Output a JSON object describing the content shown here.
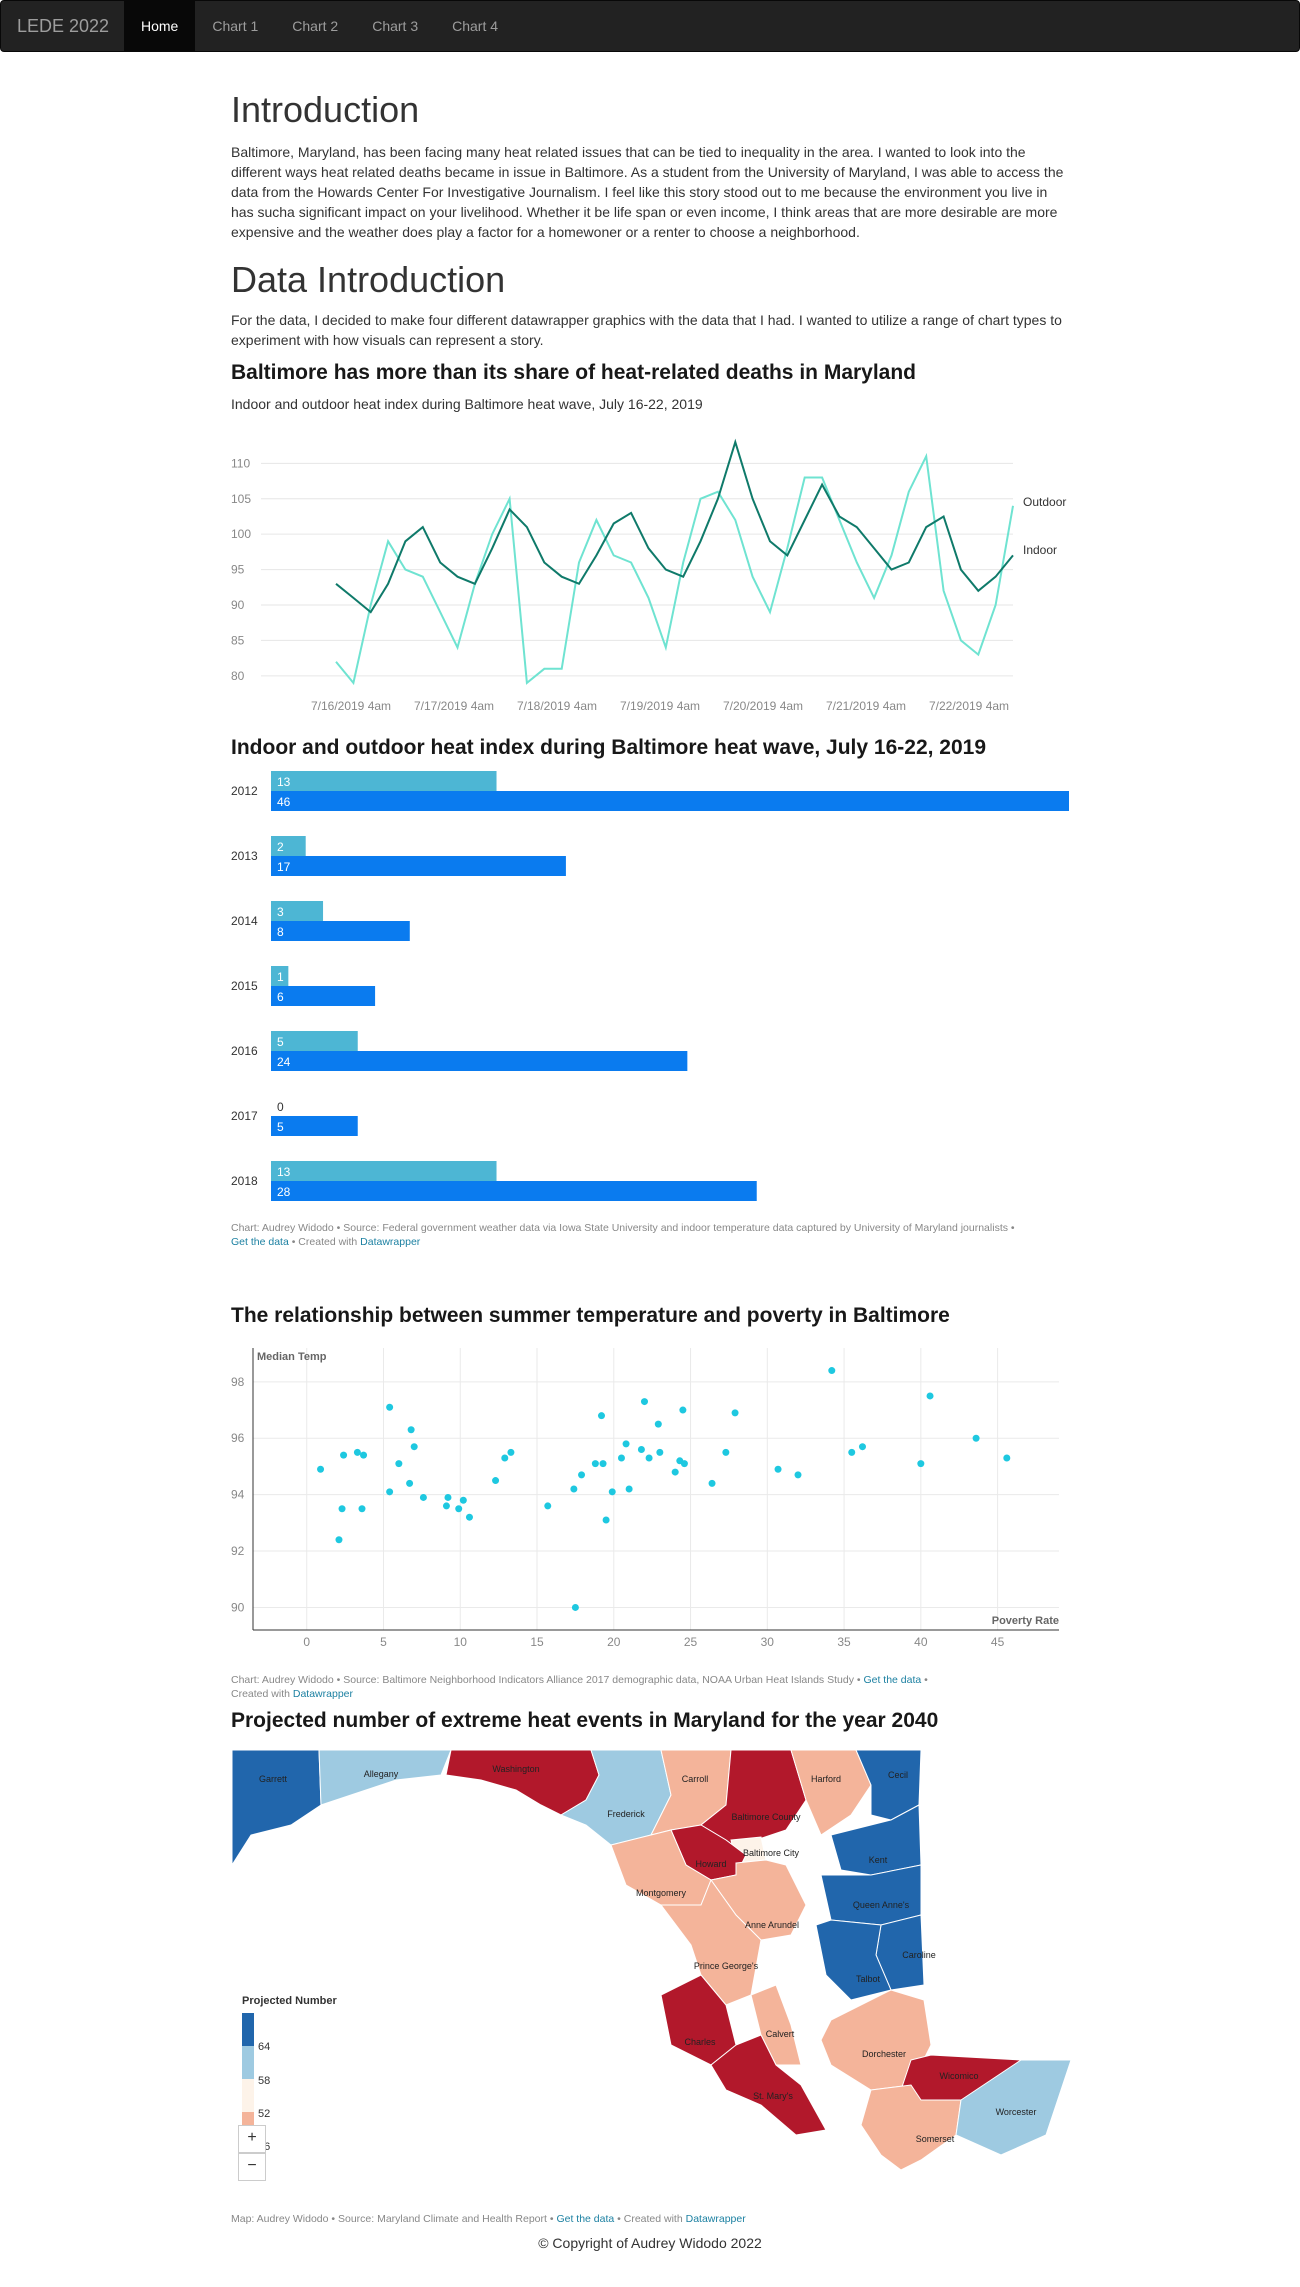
{
  "nav": {
    "brand": "LEDE 2022",
    "items": [
      "Home",
      "Chart 1",
      "Chart 2",
      "Chart 3",
      "Chart 4"
    ]
  },
  "intro": {
    "heading": "Introduction",
    "text": "Baltimore, Maryland, has been facing many heat related issues that can be tied to inequality in the area. I wanted to look into the different ways heat related deaths became in issue in Baltimore. As a student from the University of Maryland, I was able to access the data from the Howards Center For Investigative Journalism. I feel like this story stood out to me because the environment you live in has sucha significant impact on your livelihood. Whether it be life span or even income, I think areas that are more desirable are more expensive and the weather does play a factor for a homewoner or a renter to choose a neighborhood."
  },
  "data_intro": {
    "heading": "Data Introduction",
    "text": "For the data, I decided to make four different datawrapper graphics with the data that I had. I wanted to utilize a range of chart types to experiment with how visuals can represent a story."
  },
  "chart1": {
    "title": "Baltimore has more than its share of heat-related deaths in Maryland",
    "subtitle": "Indoor and outdoor heat index during Baltimore heat wave, July 16-22, 2019"
  },
  "chart2": {
    "title": "Indoor and outdoor heat index during Baltimore heat wave, July 16-22, 2019",
    "footnote_prefix": "Chart: Audrey Widodo • Source: Federal government weather data via Iowa State University and indoor temperature data captured by University of Maryland journalists •",
    "get_data": "Get the data",
    "created": " • Created with ",
    "dw": "Datawrapper"
  },
  "chart3": {
    "title": "The relationship between summer temperature and poverty in Baltimore",
    "footnote_prefix": "Chart: Audrey Widodo • Source: Baltimore Neighborhood Indicators Alliance 2017 demographic data, NOAA Urban Heat Islands Study • ",
    "get_data": "Get the data",
    "created": "Created with ",
    "dw": "Datawrapper"
  },
  "chart4": {
    "title": "Projected number of extreme heat events in Maryland for the year 2040",
    "legend_title": "Projected Number",
    "legend_values": [
      "64",
      "58",
      "52",
      "46"
    ],
    "zoom_in": "+",
    "zoom_out": "−",
    "footnote_prefix": "Map: Audrey Widodo • Source: Maryland Climate and Health Report • ",
    "get_data": "Get the data",
    "created": " • Created with ",
    "dw": "Datawrapper",
    "counties": [
      "Garrett",
      "Allegany",
      "Washington",
      "Frederick",
      "Carroll",
      "Baltimore County",
      "Harford",
      "Cecil",
      "Baltimore City",
      "Howard",
      "Montgomery",
      "Kent",
      "Queen Anne's",
      "Anne Arundel",
      "Prince George's",
      "Caroline",
      "Talbot",
      "Calvert",
      "Charles",
      "Dorchester",
      "St. Mary's",
      "Wicomico",
      "Worcester",
      "Somerset"
    ],
    "colors": {
      "dark_blue": "#2166ac",
      "light_blue": "#9ecae1",
      "peach": "#f4b49a",
      "red": "#b2182b",
      "cream": "#fdf3e9"
    }
  },
  "copyright": "© Copyright of Audrey Widodo 2022",
  "chart_data": [
    {
      "type": "line",
      "title": "Baltimore has more than its share of heat-related deaths in Maryland",
      "subtitle": "Indoor and outdoor heat index during Baltimore heat wave, July 16-22, 2019",
      "x_tick_labels": [
        "7/16/2019 4am",
        "7/17/2019 4am",
        "7/18/2019 4am",
        "7/19/2019 4am",
        "7/20/2019 4am",
        "7/21/2019 4am",
        "7/22/2019 4am"
      ],
      "ylim": [
        78,
        114
      ],
      "y_ticks": [
        80,
        85,
        90,
        95,
        100,
        105,
        110
      ],
      "series": [
        {
          "name": "Outdoor",
          "color": "#6fe3d1",
          "values": [
            82,
            79,
            90,
            99,
            95,
            94,
            89,
            84,
            93,
            100,
            105,
            79,
            81,
            81,
            96,
            102,
            97,
            96,
            91,
            84,
            96,
            105,
            106,
            102,
            94,
            89,
            98,
            108,
            108,
            102,
            96,
            91,
            97,
            106,
            111,
            92,
            85,
            83,
            90,
            104
          ]
        },
        {
          "name": "Indoor",
          "color": "#0f7a6a",
          "values": [
            93,
            91,
            89,
            93,
            99,
            101,
            96,
            94,
            93,
            98,
            103.5,
            101,
            96,
            94,
            93,
            97,
            101.5,
            103,
            98,
            95,
            94,
            99,
            105,
            113,
            105,
            99,
            97,
            102,
            107,
            102.5,
            101,
            98,
            95,
            96,
            101,
            102.5,
            95,
            92,
            94,
            97
          ]
        }
      ]
    },
    {
      "type": "bar",
      "title": "Indoor and outdoor heat index during Baltimore heat wave, July 16-22, 2019",
      "categories": [
        "2012",
        "2013",
        "2014",
        "2015",
        "2016",
        "2017",
        "2018"
      ],
      "xlim": [
        0,
        46
      ],
      "series": [
        {
          "color": "#4db6d4",
          "values": [
            13,
            2,
            3,
            1,
            5,
            0,
            13
          ]
        },
        {
          "color": "#0a7bef",
          "values": [
            46,
            17,
            8,
            6,
            24,
            5,
            28
          ]
        }
      ]
    },
    {
      "type": "scatter",
      "title": "The relationship between summer temperature and poverty in Baltimore",
      "xlabel": "Poverty Rate",
      "ylabel": "Median Temp",
      "xlim": [
        -3.5,
        49
      ],
      "ylim": [
        89.2,
        99.2
      ],
      "x_ticks": [
        0,
        5,
        10,
        15,
        20,
        25,
        30,
        35,
        40,
        45
      ],
      "y_ticks": [
        90,
        92,
        94,
        96,
        98
      ],
      "color": "#1ec8e0",
      "points": [
        [
          0.9,
          94.9
        ],
        [
          2.1,
          92.4
        ],
        [
          2.3,
          93.5
        ],
        [
          2.4,
          95.4
        ],
        [
          3.3,
          95.5
        ],
        [
          3.6,
          93.5
        ],
        [
          3.7,
          95.4
        ],
        [
          5.4,
          97.1
        ],
        [
          5.4,
          94.1
        ],
        [
          6.0,
          95.1
        ],
        [
          6.7,
          94.4
        ],
        [
          6.8,
          96.3
        ],
        [
          7.0,
          95.7
        ],
        [
          7.6,
          93.9
        ],
        [
          9.1,
          93.6
        ],
        [
          9.2,
          93.9
        ],
        [
          9.9,
          93.5
        ],
        [
          10.2,
          93.8
        ],
        [
          10.6,
          93.2
        ],
        [
          12.3,
          94.5
        ],
        [
          12.9,
          95.3
        ],
        [
          13.3,
          95.5
        ],
        [
          15.7,
          93.6
        ],
        [
          17.4,
          94.2
        ],
        [
          17.5,
          90.0
        ],
        [
          17.9,
          94.7
        ],
        [
          18.8,
          95.1
        ],
        [
          19.2,
          96.8
        ],
        [
          19.3,
          95.1
        ],
        [
          19.5,
          93.1
        ],
        [
          19.9,
          94.1
        ],
        [
          20.5,
          95.3
        ],
        [
          20.8,
          95.8
        ],
        [
          21.0,
          94.2
        ],
        [
          21.8,
          95.6
        ],
        [
          22.0,
          97.3
        ],
        [
          22.3,
          95.3
        ],
        [
          22.9,
          96.5
        ],
        [
          23.0,
          95.5
        ],
        [
          24.0,
          94.8
        ],
        [
          24.3,
          95.2
        ],
        [
          24.5,
          97.0
        ],
        [
          24.6,
          95.1
        ],
        [
          26.4,
          94.4
        ],
        [
          27.3,
          95.5
        ],
        [
          27.9,
          96.9
        ],
        [
          30.7,
          94.9
        ],
        [
          32.0,
          94.7
        ],
        [
          34.2,
          98.4
        ],
        [
          35.5,
          95.5
        ],
        [
          36.2,
          95.7
        ],
        [
          40.0,
          95.1
        ],
        [
          40.6,
          97.5
        ],
        [
          43.6,
          96.0
        ],
        [
          45.6,
          95.3
        ]
      ]
    }
  ]
}
